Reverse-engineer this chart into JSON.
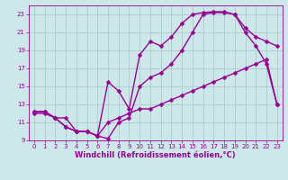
{
  "xlabel": "Windchill (Refroidissement éolien,°C)",
  "bg_color": "#cde8e8",
  "grid_color": "#aacccc",
  "line_color": "#990099",
  "xlim": [
    -0.5,
    23.5
  ],
  "ylim": [
    9,
    24
  ],
  "xticks": [
    0,
    1,
    2,
    3,
    4,
    5,
    6,
    7,
    8,
    9,
    10,
    11,
    12,
    13,
    14,
    15,
    16,
    17,
    18,
    19,
    20,
    21,
    22,
    23
  ],
  "yticks": [
    9,
    11,
    13,
    15,
    17,
    19,
    21,
    23
  ],
  "line1_x": [
    0,
    1,
    2,
    3,
    4,
    5,
    6,
    7,
    8,
    9,
    10,
    11,
    12,
    13,
    14,
    15,
    16,
    17,
    18,
    19,
    20,
    21,
    22,
    23
  ],
  "line1_y": [
    12.2,
    12.2,
    11.5,
    10.5,
    10.0,
    10.0,
    9.5,
    9.2,
    11.0,
    11.5,
    15.0,
    16.0,
    16.5,
    17.5,
    19.0,
    21.0,
    23.0,
    23.2,
    23.2,
    23.0,
    21.5,
    20.5,
    20.0,
    19.5
  ],
  "line2_x": [
    0,
    1,
    2,
    3,
    4,
    5,
    6,
    7,
    8,
    9,
    10,
    11,
    12,
    13,
    14,
    15,
    16,
    17,
    18,
    19,
    20,
    21,
    22,
    23
  ],
  "line2_y": [
    12.2,
    12.2,
    11.5,
    10.5,
    10.0,
    10.0,
    9.5,
    15.5,
    14.5,
    12.5,
    18.5,
    20.0,
    19.5,
    20.5,
    22.0,
    23.0,
    23.2,
    23.3,
    23.3,
    23.0,
    21.0,
    19.5,
    17.5,
    13.0
  ],
  "line3_x": [
    0,
    1,
    2,
    3,
    4,
    5,
    6,
    7,
    8,
    9,
    10,
    11,
    12,
    13,
    14,
    15,
    16,
    17,
    18,
    19,
    20,
    21,
    22,
    23
  ],
  "line3_y": [
    12.0,
    12.0,
    11.5,
    11.5,
    10.0,
    10.0,
    9.5,
    11.0,
    11.5,
    12.0,
    12.5,
    12.5,
    13.0,
    13.5,
    14.0,
    14.5,
    15.0,
    15.5,
    16.0,
    16.5,
    17.0,
    17.5,
    18.0,
    13.0
  ],
  "marker": "D",
  "markersize": 2.5,
  "linewidth": 1.0,
  "tick_fontsize": 5.0,
  "label_fontsize": 6.0
}
